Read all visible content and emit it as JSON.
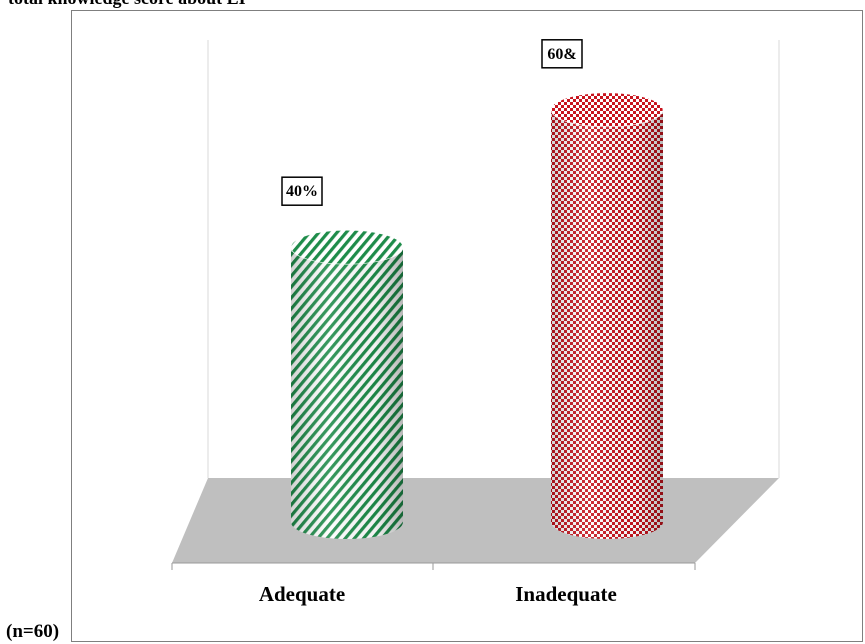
{
  "header": {
    "title": "total knowledge score about EI"
  },
  "sample_note": "(n=60)",
  "chart_data": {
    "type": "bar",
    "categories": [
      "Adequate",
      "Inadequate"
    ],
    "values": [
      40,
      60
    ],
    "data_labels": [
      "40%",
      "60&"
    ],
    "colors": [
      "#1e8c4a",
      "#c8141e"
    ],
    "patterns": [
      "diagonal-stripes",
      "checkerboard"
    ],
    "three_d": true,
    "ylim": [
      0,
      100
    ],
    "grid": false,
    "title": "",
    "xlabel": "",
    "ylabel": ""
  }
}
